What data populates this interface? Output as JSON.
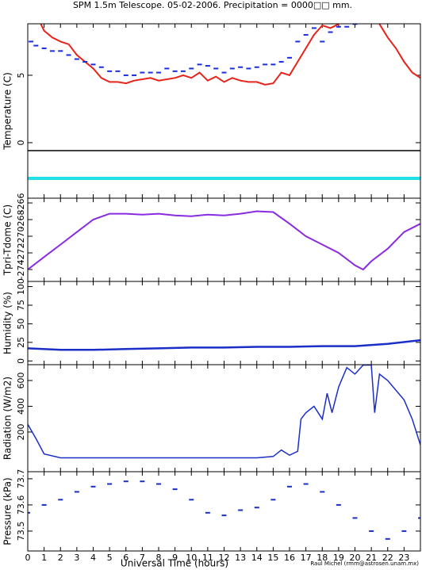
{
  "title": "SPM 1.5m Telescope. 05-02-2006. Precipitation = 0000□□ mm.",
  "credit": "Raul Michel (rmm@astrosen.unam.mx)",
  "chart_data": [
    {
      "type": "line",
      "ylabel": "Temperature (C)",
      "xlim": [
        0,
        24
      ],
      "ylim": [
        -4.12,
        8.82
      ],
      "yticks": [
        0,
        5
      ],
      "series": [
        {
          "color": "#e8231a",
          "style": "line",
          "x": [
            0.8,
            1,
            1.5,
            2,
            2.5,
            3,
            3.5,
            4,
            4.5,
            5,
            5.5,
            6,
            6.5,
            7,
            7.5,
            8,
            8.5,
            9,
            9.5,
            10,
            10.5,
            11,
            11.5,
            12,
            12.5,
            13,
            13.5,
            14,
            14.5,
            15,
            15.5,
            16,
            16.5,
            17,
            17.5,
            18,
            18.5,
            19,
            20.5,
            21.5,
            22,
            22.5,
            23,
            23.5,
            24
          ],
          "values": [
            8.8,
            8.3,
            7.8,
            7.5,
            7.3,
            6.5,
            6.0,
            5.5,
            4.8,
            4.5,
            4.5,
            4.4,
            4.6,
            4.7,
            4.8,
            4.6,
            4.7,
            4.8,
            5.0,
            4.8,
            5.2,
            4.6,
            4.9,
            4.5,
            4.8,
            4.6,
            4.5,
            4.5,
            4.3,
            4.4,
            5.2,
            5.0,
            6.0,
            7.0,
            8.0,
            8.7,
            8.5,
            8.8,
            null,
            8.8,
            7.8,
            7.0,
            6.0,
            5.2,
            4.8
          ]
        },
        {
          "color": "#1a2ee0",
          "style": "dots",
          "x": [
            0.2,
            0.5,
            1,
            1.5,
            2,
            2.5,
            3,
            3.5,
            4,
            4.5,
            5,
            5.5,
            6,
            6.5,
            7,
            7.5,
            8,
            8.5,
            9,
            9.5,
            10,
            10.5,
            11,
            11.5,
            12,
            12.5,
            13,
            13.5,
            14,
            14.5,
            15,
            15.5,
            16,
            16.5,
            17,
            17.5,
            18,
            18.5,
            19,
            19.5,
            20
          ],
          "values": [
            7.5,
            7.2,
            7.0,
            6.8,
            6.8,
            6.5,
            6.2,
            6.0,
            5.8,
            5.6,
            5.3,
            5.3,
            5.0,
            5.0,
            5.2,
            5.2,
            5.2,
            5.5,
            5.3,
            5.3,
            5.5,
            5.8,
            5.7,
            5.5,
            5.2,
            5.5,
            5.6,
            5.5,
            5.6,
            5.8,
            5.8,
            6.0,
            6.3,
            7.5,
            8.0,
            8.5,
            7.5,
            8.2,
            8.6,
            8.6,
            8.8
          ]
        },
        {
          "color": "#000000",
          "style": "line",
          "width": 1.5,
          "x": [
            0,
            24
          ],
          "values": [
            -0.59,
            -0.59
          ]
        },
        {
          "color": "#22e0e8",
          "style": "line",
          "width": 4,
          "x": [
            0,
            24
          ],
          "values": [
            -2.65,
            -2.65
          ]
        }
      ]
    },
    {
      "type": "line",
      "ylabel": "Tpri-Tdome (C)",
      "xlim": [
        0,
        24
      ],
      "ylim": [
        -275.43,
        -265.43
      ],
      "yticks": [
        -274,
        -272,
        -270,
        -268,
        -266
      ],
      "series": [
        {
          "color": "#8a2be2",
          "style": "line",
          "x": [
            0,
            1,
            2,
            3,
            4,
            5,
            6,
            7,
            8,
            9,
            10,
            11,
            12,
            13,
            14,
            15,
            16,
            17,
            18,
            19,
            20,
            20.5,
            21,
            22,
            23,
            24
          ],
          "values": [
            -274.0,
            -272.5,
            -271.0,
            -269.5,
            -268.0,
            -267.3,
            -267.3,
            -267.4,
            -267.3,
            -267.5,
            -267.6,
            -267.4,
            -267.5,
            -267.3,
            -267.0,
            -267.1,
            -268.5,
            -270.0,
            -271.0,
            -272.0,
            -273.5,
            -274.0,
            -273.0,
            -271.5,
            -269.5,
            -268.5
          ]
        }
      ]
    },
    {
      "type": "line",
      "ylabel": "Humidity (%)",
      "xlim": [
        0,
        24
      ],
      "ylim": [
        -5,
        107
      ],
      "yticks": [
        0,
        25,
        50,
        75,
        100
      ],
      "series": [
        {
          "color": "#1a2ec8",
          "style": "line",
          "width": 2.5,
          "x": [
            0,
            2,
            4,
            6,
            8,
            10,
            12,
            14,
            16,
            18,
            20,
            22,
            24
          ],
          "values": [
            17,
            15,
            15,
            16,
            17,
            18,
            18,
            19,
            19,
            20,
            20,
            23,
            28
          ]
        }
      ]
    },
    {
      "type": "line",
      "ylabel": "Radiation (W/m2)",
      "xlim": [
        0,
        24
      ],
      "ylim": [
        -108,
        723
      ],
      "yticks": [
        200,
        400,
        600
      ],
      "series": [
        {
          "color": "#1a2ec8",
          "style": "line",
          "width": 1.5,
          "x": [
            0,
            0.5,
            1,
            2,
            4,
            6,
            8,
            10,
            12,
            14,
            15,
            15.5,
            16,
            16.5,
            16.7,
            17,
            17.5,
            18,
            18.3,
            18.6,
            19,
            19.5,
            20,
            20.5,
            21,
            21.2,
            21.5,
            22,
            23,
            23.5,
            24
          ],
          "values": [
            260,
            150,
            30,
            0,
            0,
            0,
            0,
            0,
            0,
            0,
            10,
            60,
            20,
            50,
            300,
            350,
            400,
            300,
            500,
            350,
            550,
            700,
            650,
            720,
            720,
            350,
            650,
            600,
            450,
            300,
            100
          ]
        }
      ]
    },
    {
      "type": "line",
      "ylabel": "Pressure (kPa)",
      "xlabel": "Universal Time (hours)",
      "xlim": [
        0,
        24
      ],
      "ylim": [
        73.424,
        73.727
      ],
      "yticks": [
        73.5,
        73.6,
        73.7
      ],
      "xticks": [
        0,
        1,
        2,
        3,
        4,
        5,
        6,
        7,
        8,
        9,
        10,
        11,
        12,
        13,
        14,
        15,
        16,
        17,
        18,
        19,
        20,
        21,
        22,
        23
      ],
      "series": [
        {
          "color": "#1a2ec8",
          "style": "dots",
          "x": [
            0,
            1,
            2,
            3,
            4,
            5,
            6,
            7,
            8,
            9,
            10,
            11,
            12,
            13,
            14,
            15,
            16,
            17,
            18,
            19,
            20,
            21,
            22,
            23,
            24
          ],
          "values": [
            73.57,
            73.6,
            73.62,
            73.65,
            73.67,
            73.68,
            73.69,
            73.69,
            73.68,
            73.66,
            73.62,
            73.57,
            73.56,
            73.58,
            73.59,
            73.62,
            73.67,
            73.68,
            73.65,
            73.6,
            73.55,
            73.5,
            73.47,
            73.5,
            73.55
          ]
        }
      ]
    }
  ]
}
